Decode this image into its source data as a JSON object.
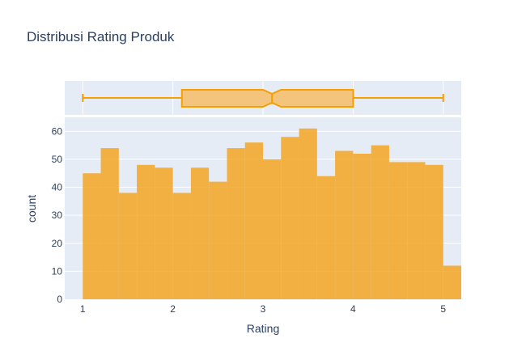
{
  "chart_data": {
    "type": "histogram",
    "title": "Distribusi Rating Produk",
    "xlabel": "Rating",
    "ylabel": "count",
    "xlim": [
      0.8,
      5.2
    ],
    "ylim": [
      0,
      65
    ],
    "bin_width": 0.2,
    "bin_start": 1.0,
    "values": [
      45,
      54,
      38,
      48,
      47,
      38,
      47,
      42,
      54,
      56,
      50,
      58,
      61,
      44,
      53,
      52,
      55,
      49,
      49,
      48,
      12
    ],
    "x_ticks": [
      1,
      2,
      3,
      4,
      5
    ],
    "y_ticks": [
      0,
      10,
      20,
      30,
      40,
      50,
      60
    ],
    "box": {
      "min": 1.0,
      "q1": 2.1,
      "median": 3.1,
      "q3": 4.0,
      "max": 5.0,
      "notch_low": 3.0,
      "notch_high": 3.2
    },
    "grid": true,
    "colors": {
      "bar": "#F5A623",
      "bar_opacity": 0.85,
      "box_line": "#F5A000",
      "box_fill": "#F4C47C",
      "plot_bg": "#E5ECF6",
      "grid": "#ffffff",
      "text": "#2a3f5f"
    }
  }
}
